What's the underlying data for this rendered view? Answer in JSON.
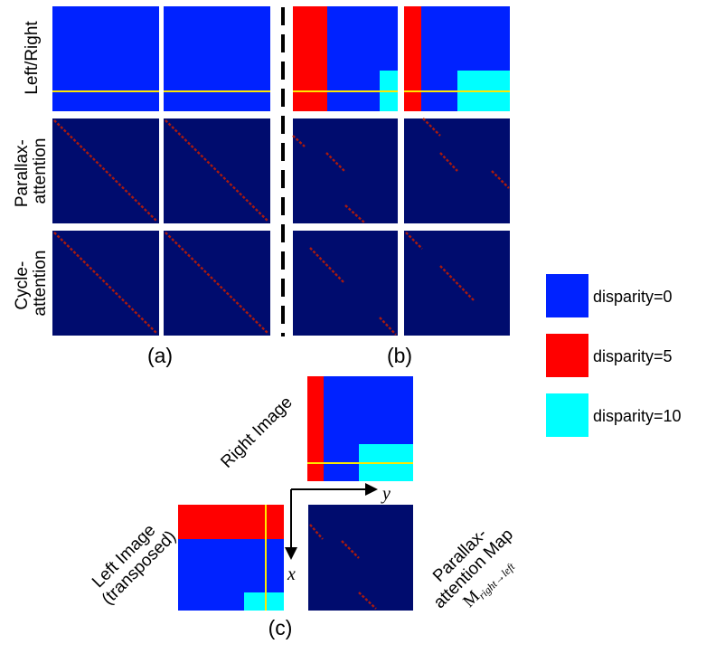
{
  "rows": {
    "left_right": "Left/Right",
    "parallax_line1": "Parallax-",
    "parallax_line2": "attention",
    "cycle_line1": "Cycle-",
    "cycle_line2": "attention"
  },
  "captions": {
    "a": "(a)",
    "b": "(b)",
    "c": "(c)"
  },
  "legend": [
    {
      "label": "disparity=0",
      "color": "#0022ff"
    },
    {
      "label": "disparity=5",
      "color": "#ff0000"
    },
    {
      "label": "disparity=10",
      "color": "#00ffff"
    }
  ],
  "panel_c": {
    "right_image": "Right Image",
    "left_line1": "Left Image",
    "left_line2": "(transposed)",
    "map_line1": "Parallax-",
    "map_line2": "attention Map",
    "map_symbol": "M",
    "map_subscript": "right→left",
    "axis_x": "x",
    "axis_y": "y"
  },
  "colors": {
    "image_blue": "#0022ff",
    "attention_bg": "#000c6e",
    "attention_diag": "#aa1a0e",
    "red": "#ff0000",
    "cyan": "#00ffff",
    "yellow": "#ffe800"
  }
}
